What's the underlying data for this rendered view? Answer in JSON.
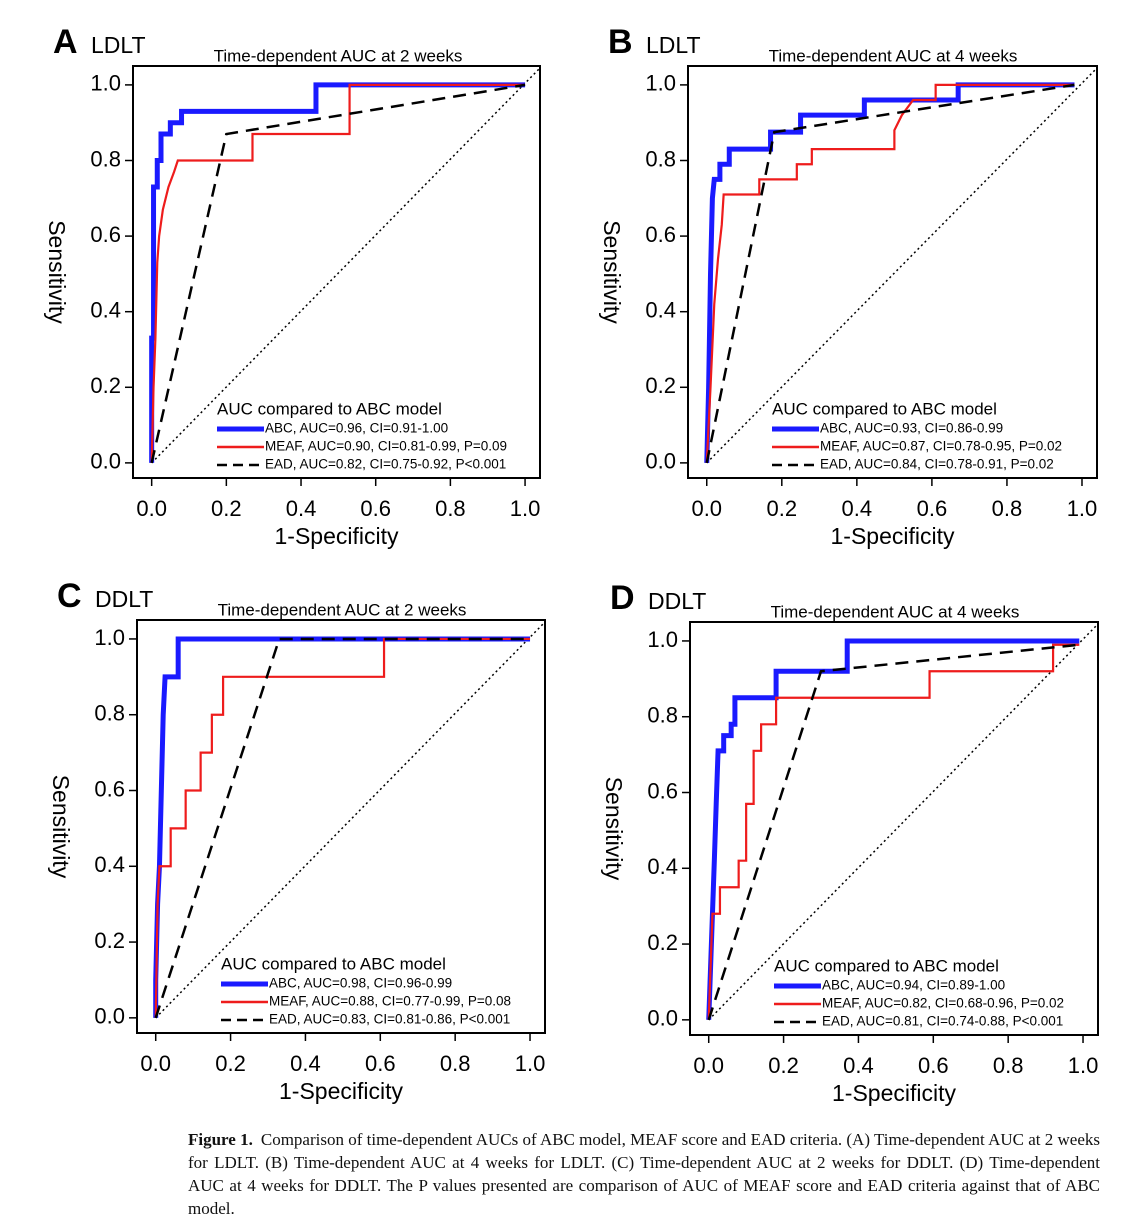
{
  "chart_data": [
    {
      "type": "line",
      "panel": "A",
      "subset": "LDLT",
      "title": "Time-dependent AUC at 2 weeks",
      "xlabel": "1-Specificity",
      "ylabel": "Sensitivity",
      "legend_title": "AUC compared to ABC model",
      "xlim": [
        -0.05,
        1.04
      ],
      "ylim": [
        -0.04,
        1.05
      ],
      "xticks": [
        {
          "value": 0,
          "label": "0.0"
        },
        0.2,
        0.4,
        0.6,
        0.8,
        {
          "value": 1,
          "label": "1.0"
        }
      ],
      "yticks": [
        {
          "value": 0,
          "label": "0.0"
        },
        0.2,
        0.4,
        0.6,
        0.8,
        {
          "value": 1,
          "label": "1.0"
        }
      ],
      "series": [
        {
          "name": "ABC, AUC=0.96, CI=0.91-1.00",
          "color": "#1a1aff",
          "linestyle": "solid",
          "x": [
            0,
            0,
            0.005,
            0.005,
            0.015,
            0.015,
            0.025,
            0.025,
            0.05,
            0.05,
            0.08,
            0.08,
            0.44,
            0.44,
            1
          ],
          "values": [
            0,
            0.33,
            0.33,
            0.73,
            0.73,
            0.8,
            0.8,
            0.87,
            0.87,
            0.9,
            0.9,
            0.93,
            0.93,
            1,
            1
          ]
        },
        {
          "name": "MEAF, AUC=0.90, CI=0.81-0.99, P=0.09",
          "color": "#ee1c1c",
          "linestyle": "solid",
          "x": [
            0,
            0.005,
            0.01,
            0.015,
            0.02,
            0.03,
            0.045,
            0.06,
            0.07,
            0.27,
            0.27,
            0.53,
            0.53,
            1
          ],
          "values": [
            0,
            0.2,
            0.33,
            0.53,
            0.6,
            0.67,
            0.73,
            0.77,
            0.8,
            0.8,
            0.87,
            0.87,
            1,
            1
          ]
        },
        {
          "name": "EAD, AUC=0.82, CI=0.75-0.92, P<0.001",
          "color": "#000000",
          "linestyle": "dashed",
          "x": [
            0,
            0.2,
            1
          ],
          "values": [
            0,
            0.87,
            1
          ]
        }
      ]
    },
    {
      "type": "line",
      "panel": "B",
      "subset": "LDLT",
      "title": "Time-dependent AUC at 4 weeks",
      "xlabel": "1-Specificity",
      "ylabel": "Sensitivity",
      "legend_title": "AUC compared to ABC model",
      "xlim": [
        -0.05,
        1.04
      ],
      "ylim": [
        -0.04,
        1.05
      ],
      "xticks": [
        {
          "value": 0,
          "label": "0.0"
        },
        0.2,
        0.4,
        0.6,
        0.8,
        {
          "value": 1,
          "label": "1.0"
        }
      ],
      "yticks": [
        {
          "value": 0,
          "label": "0.0"
        },
        0.2,
        0.4,
        0.6,
        0.8,
        {
          "value": 1,
          "label": "1.0"
        }
      ],
      "series": [
        {
          "name": "ABC, AUC=0.93, CI=0.86-0.99",
          "color": "#1a1aff",
          "linestyle": "solid",
          "x": [
            0,
            0.005,
            0.01,
            0.015,
            0.02,
            0.035,
            0.035,
            0.06,
            0.06,
            0.17,
            0.17,
            0.25,
            0.25,
            0.42,
            0.42,
            0.67,
            0.67,
            0.98
          ],
          "values": [
            0,
            0.2,
            0.5,
            0.7,
            0.75,
            0.75,
            0.79,
            0.79,
            0.83,
            0.83,
            0.875,
            0.875,
            0.92,
            0.92,
            0.96,
            0.96,
            1,
            1
          ]
        },
        {
          "name": "MEAF, AUC=0.87, CI=0.78-0.95, P=0.02",
          "color": "#ee1c1c",
          "linestyle": "solid",
          "x": [
            0,
            0.01,
            0.02,
            0.03,
            0.04,
            0.045,
            0.14,
            0.14,
            0.24,
            0.24,
            0.28,
            0.28,
            0.5,
            0.5,
            0.52,
            0.55,
            0.61,
            0.61,
            0.98
          ],
          "values": [
            0,
            0.2,
            0.42,
            0.54,
            0.63,
            0.71,
            0.71,
            0.75,
            0.75,
            0.79,
            0.79,
            0.83,
            0.83,
            0.88,
            0.92,
            0.96,
            0.96,
            1,
            1
          ]
        },
        {
          "name": "EAD, AUC=0.84, CI=0.78-0.91, P=0.02",
          "color": "#000000",
          "linestyle": "dashed",
          "x": [
            0,
            0.18,
            0.98
          ],
          "values": [
            0,
            0.875,
            1
          ]
        }
      ]
    },
    {
      "type": "line",
      "panel": "C",
      "subset": "DDLT",
      "title": "Time-dependent AUC at 2 weeks",
      "xlabel": "1-Specificity",
      "ylabel": "Sensitivity",
      "legend_title": "AUC compared to ABC model",
      "xlim": [
        -0.05,
        1.04
      ],
      "ylim": [
        -0.04,
        1.05
      ],
      "xticks": [
        {
          "value": 0,
          "label": "0.0"
        },
        0.2,
        0.4,
        0.6,
        0.8,
        {
          "value": 1,
          "label": "1.0"
        }
      ],
      "yticks": [
        {
          "value": 0,
          "label": "0.0"
        },
        0.2,
        0.4,
        0.6,
        0.8,
        {
          "value": 1,
          "label": "1.0"
        }
      ],
      "series": [
        {
          "name": "ABC, AUC=0.98, CI=0.96-0.99",
          "color": "#1a1aff",
          "linestyle": "solid",
          "x": [
            0,
            0,
            0.005,
            0.01,
            0.015,
            0.02,
            0.025,
            0.06,
            0.06,
            1
          ],
          "values": [
            0,
            0.1,
            0.3,
            0.4,
            0.6,
            0.8,
            0.9,
            0.9,
            1,
            1
          ]
        },
        {
          "name": "MEAF, AUC=0.88, CI=0.77-0.99, P=0.08",
          "color": "#ee1c1c",
          "linestyle": "solid",
          "x": [
            0,
            0.005,
            0.01,
            0.04,
            0.04,
            0.08,
            0.08,
            0.12,
            0.12,
            0.15,
            0.15,
            0.18,
            0.18,
            0.61,
            0.61,
            1
          ],
          "values": [
            0,
            0.3,
            0.4,
            0.4,
            0.5,
            0.5,
            0.6,
            0.6,
            0.7,
            0.7,
            0.8,
            0.8,
            0.9,
            0.9,
            1,
            1
          ]
        },
        {
          "name": "EAD, AUC=0.83, CI=0.81-0.86, P<0.001",
          "color": "#000000",
          "linestyle": "dashed",
          "x": [
            0,
            0.33,
            1
          ],
          "values": [
            0,
            1,
            1
          ]
        }
      ]
    },
    {
      "type": "line",
      "panel": "D",
      "subset": "DDLT",
      "title": "Time-dependent AUC at 4 weeks",
      "xlabel": "1-Specificity",
      "ylabel": "Sensitivity",
      "legend_title": "AUC compared to ABC model",
      "xlim": [
        -0.05,
        1.04
      ],
      "ylim": [
        -0.04,
        1.05
      ],
      "xticks": [
        {
          "value": 0,
          "label": "0.0"
        },
        0.2,
        0.4,
        0.6,
        0.8,
        {
          "value": 1,
          "label": "1.0"
        }
      ],
      "yticks": [
        {
          "value": 0,
          "label": "0.0"
        },
        0.2,
        0.4,
        0.6,
        0.8,
        {
          "value": 1,
          "label": "1.0"
        }
      ],
      "series": [
        {
          "name": "ABC, AUC=0.94, CI=0.89-1.00",
          "color": "#1a1aff",
          "linestyle": "solid",
          "x": [
            0,
            0.01,
            0.015,
            0.02,
            0.025,
            0.04,
            0.04,
            0.06,
            0.06,
            0.07,
            0.07,
            0.18,
            0.18,
            0.37,
            0.37,
            0.99
          ],
          "values": [
            0,
            0.28,
            0.42,
            0.57,
            0.71,
            0.71,
            0.75,
            0.75,
            0.78,
            0.78,
            0.85,
            0.85,
            0.92,
            0.92,
            1,
            1
          ]
        },
        {
          "name": "MEAF, AUC=0.82, CI=0.68-0.96, P=0.02",
          "color": "#ee1c1c",
          "linestyle": "solid",
          "x": [
            0,
            0.01,
            0.03,
            0.03,
            0.08,
            0.08,
            0.1,
            0.1,
            0.12,
            0.12,
            0.14,
            0.14,
            0.18,
            0.18,
            0.59,
            0.59,
            0.92,
            0.92,
            0.99
          ],
          "values": [
            0,
            0.28,
            0.28,
            0.35,
            0.35,
            0.42,
            0.42,
            0.57,
            0.57,
            0.71,
            0.71,
            0.78,
            0.78,
            0.85,
            0.85,
            0.92,
            0.92,
            0.99,
            0.99
          ]
        },
        {
          "name": "EAD, AUC=0.81, CI=0.74-0.88, P<0.001",
          "color": "#000000",
          "linestyle": "dashed",
          "x": [
            0,
            0.3,
            0.99
          ],
          "values": [
            0,
            0.92,
            0.99
          ]
        }
      ]
    }
  ],
  "caption": {
    "label": "Figure 1.",
    "text": "Comparison of time-dependent AUCs of ABC model, MEAF score and EAD criteria. (A) Time-dependent AUC at 2 weeks for LDLT. (B) Time-dependent AUC at 4 weeks for LDLT. (C) Time-dependent AUC at 2 weeks for DDLT. (D) Time-dependent AUC at 4 weeks for DDLT. The P values presented are comparison of AUC of MEAF score and EAD criteria against that of ABC model."
  }
}
